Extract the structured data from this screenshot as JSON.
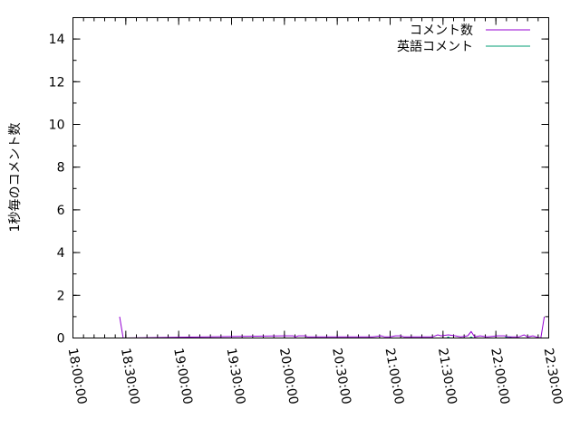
{
  "chart_data": {
    "type": "line",
    "title": "",
    "xlabel": "",
    "ylabel": "1秒毎のコメント数",
    "xlim": [
      "18:00:00",
      "22:30:00"
    ],
    "ylim": [
      0,
      15
    ],
    "xticks": [
      "18:00:00",
      "18:30:00",
      "19:00:00",
      "19:30:00",
      "20:00:00",
      "20:30:00",
      "21:00:00",
      "21:30:00",
      "22:00:00",
      "22:30:00"
    ],
    "yticks": [
      "0",
      "2",
      "4",
      "6",
      "8",
      "10",
      "12",
      "14"
    ],
    "grid": false,
    "legend_position": "top-right",
    "series": [
      {
        "name": "コメント数",
        "color": "#9400d3",
        "points": [
          [
            "18:26:30",
            1.0
          ],
          [
            "18:28:30",
            0.0
          ],
          [
            "20:00:00",
            0.1
          ],
          [
            "20:05:00",
            0.1
          ],
          [
            "20:06:00",
            0.05
          ],
          [
            "20:08:00",
            0.1
          ],
          [
            "20:12:00",
            0.1
          ],
          [
            "20:13:00",
            0.05
          ],
          [
            "20:30:00",
            0.05
          ],
          [
            "20:50:00",
            0.05
          ],
          [
            "20:55:00",
            0.1
          ],
          [
            "20:57:00",
            0.05
          ],
          [
            "21:00:00",
            0.05
          ],
          [
            "21:03:00",
            0.1
          ],
          [
            "21:06:00",
            0.1
          ],
          [
            "21:08:00",
            0.05
          ],
          [
            "21:14:00",
            0.05
          ],
          [
            "21:17:00",
            0.05
          ],
          [
            "21:24:00",
            0.05
          ],
          [
            "21:27:00",
            0.15
          ],
          [
            "21:29:00",
            0.1
          ],
          [
            "21:33:00",
            0.15
          ],
          [
            "21:37:00",
            0.1
          ],
          [
            "21:40:00",
            0.05
          ],
          [
            "21:44:00",
            0.1
          ],
          [
            "21:46:00",
            0.3
          ],
          [
            "21:48:00",
            0.05
          ],
          [
            "21:51:00",
            0.1
          ],
          [
            "21:55:00",
            0.05
          ],
          [
            "22:01:00",
            0.1
          ],
          [
            "22:05:00",
            0.1
          ],
          [
            "22:07:00",
            0.05
          ],
          [
            "22:11:00",
            0.05
          ],
          [
            "22:13:00",
            0.05
          ],
          [
            "22:16:00",
            0.15
          ],
          [
            "22:18:00",
            0.05
          ],
          [
            "22:21:00",
            0.1
          ],
          [
            "22:23:00",
            0.05
          ],
          [
            "22:25:30",
            0.0
          ],
          [
            "22:27:30",
            1.0
          ]
        ]
      },
      {
        "name": "英語コメント",
        "color": "#009e73",
        "points": [
          [
            "20:00:00",
            0.0
          ],
          [
            "21:32:00",
            0.0
          ],
          [
            "21:33:00",
            0.05
          ],
          [
            "21:34:00",
            0.0
          ],
          [
            "21:45:00",
            0.0
          ],
          [
            "21:46:00",
            0.05
          ],
          [
            "21:47:00",
            0.0
          ],
          [
            "22:05:00",
            0.0
          ],
          [
            "22:06:00",
            0.05
          ],
          [
            "22:08:00",
            0.05
          ],
          [
            "22:09:00",
            0.0
          ],
          [
            "22:25:00",
            0.0
          ]
        ]
      }
    ]
  }
}
